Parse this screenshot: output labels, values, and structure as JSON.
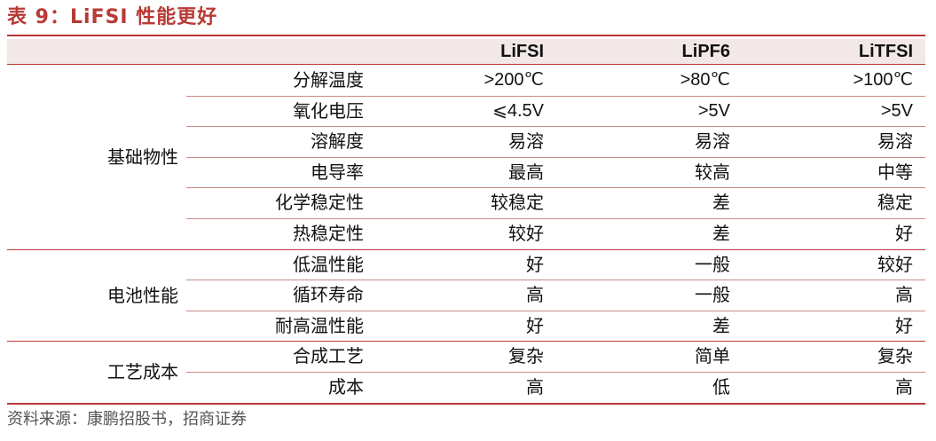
{
  "title": "表 9：LiFSI 性能更好",
  "columns": [
    "LiFSI",
    "LiPF6",
    "LiTFSI"
  ],
  "groups": [
    {
      "name": "基础物性",
      "rows": [
        {
          "label": "分解温度",
          "values": [
            ">200℃",
            ">80℃",
            ">100℃"
          ]
        },
        {
          "label": "氧化电压",
          "values": [
            "⩽4.5V",
            ">5V",
            ">5V"
          ]
        },
        {
          "label": "溶解度",
          "values": [
            "易溶",
            "易溶",
            "易溶"
          ]
        },
        {
          "label": "电导率",
          "values": [
            "最高",
            "较高",
            "中等"
          ]
        },
        {
          "label": "化学稳定性",
          "values": [
            "较稳定",
            "差",
            "稳定"
          ]
        },
        {
          "label": "热稳定性",
          "values": [
            "较好",
            "差",
            "好"
          ]
        }
      ]
    },
    {
      "name": "电池性能",
      "rows": [
        {
          "label": "低温性能",
          "values": [
            "好",
            "一般",
            "较好"
          ]
        },
        {
          "label": "循环寿命",
          "values": [
            "高",
            "一般",
            "高"
          ]
        },
        {
          "label": "耐高温性能",
          "values": [
            "好",
            "差",
            "好"
          ]
        }
      ]
    },
    {
      "name": "工艺成本",
      "rows": [
        {
          "label": "合成工艺",
          "values": [
            "复杂",
            "简单",
            "复杂"
          ]
        },
        {
          "label": "成本",
          "values": [
            "高",
            "低",
            "高"
          ]
        }
      ]
    }
  ],
  "source": "资料来源：康鹏招股书，招商证券"
}
